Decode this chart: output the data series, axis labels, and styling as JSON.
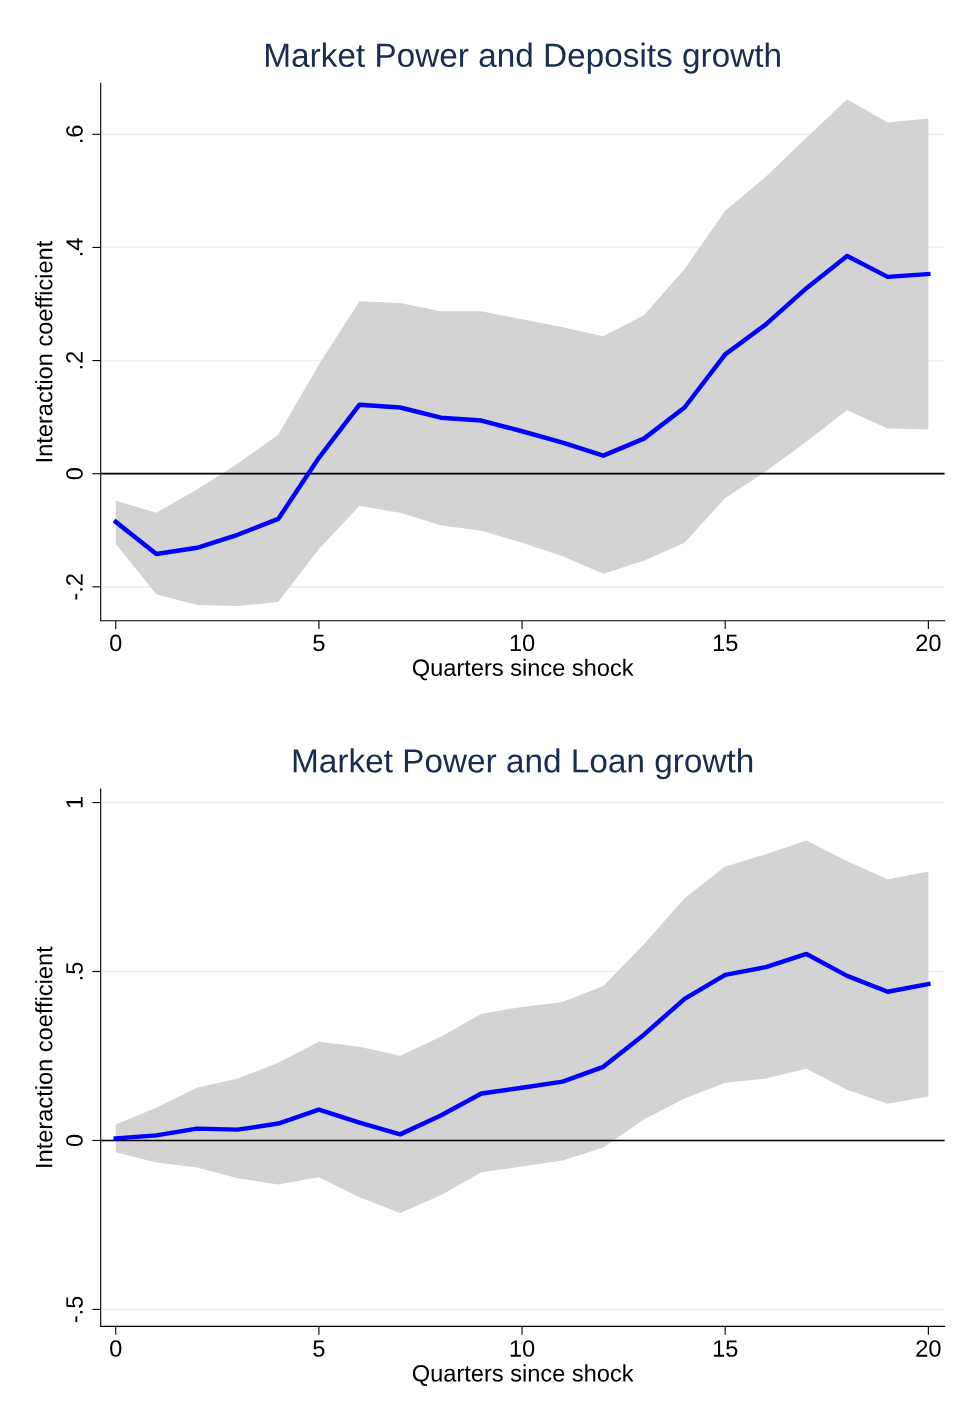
{
  "chart_data": [
    {
      "type": "line",
      "title": "Market Power and Deposits growth",
      "xlabel": "Quarters since shock",
      "ylabel": "Interaction coefficient",
      "x": [
        0,
        1,
        2,
        3,
        4,
        5,
        6,
        7,
        8,
        9,
        10,
        11,
        12,
        13,
        14,
        15,
        16,
        17,
        18,
        19,
        20
      ],
      "series": [
        {
          "color": "#0000ff",
          "values": [
            -0.085,
            -0.142,
            -0.131,
            -0.108,
            -0.08,
            0.028,
            0.122,
            0.117,
            0.099,
            0.094,
            0.075,
            0.055,
            0.032,
            0.062,
            0.117,
            0.211,
            0.264,
            0.328,
            0.385,
            0.348,
            0.353
          ],
          "upper": [
            -0.048,
            -0.069,
            -0.028,
            0.018,
            0.069,
            0.193,
            0.305,
            0.302,
            0.287,
            0.287,
            0.273,
            0.259,
            0.243,
            0.28,
            0.362,
            0.465,
            0.525,
            0.594,
            0.662,
            0.621,
            0.628
          ],
          "lower": [
            -0.124,
            -0.213,
            -0.232,
            -0.234,
            -0.227,
            -0.133,
            -0.057,
            -0.069,
            -0.091,
            -0.101,
            -0.122,
            -0.146,
            -0.177,
            -0.154,
            -0.122,
            -0.043,
            0.004,
            0.057,
            0.112,
            0.08,
            0.078
          ]
        }
      ],
      "xlim": [
        -0.37,
        20.4
      ],
      "xticks": [
        0,
        5,
        10,
        15,
        20
      ],
      "ylim": [
        -0.26,
        0.69
      ],
      "yticks": [
        {
          "value": -0.2,
          "label": "-.2"
        },
        0,
        {
          "value": 0.2,
          "label": ".2"
        },
        {
          "value": 0.4,
          "label": ".4"
        },
        {
          "value": 0.6,
          "label": ".6"
        }
      ],
      "ref_lines": [
        {
          "axis": "y",
          "value": 0,
          "color": "#000000"
        }
      ],
      "grid": "y",
      "legend": false,
      "marker": "none",
      "line_style": "solid"
    },
    {
      "type": "line",
      "title": "Market Power and Loan growth",
      "xlabel": "Quarters since shock",
      "ylabel": "Interaction coefficient",
      "x": [
        0,
        1,
        2,
        3,
        4,
        5,
        6,
        7,
        8,
        9,
        10,
        11,
        12,
        13,
        14,
        15,
        16,
        17,
        18,
        19,
        20
      ],
      "series": [
        {
          "color": "#0000ff",
          "values": [
            0.006,
            0.015,
            0.035,
            0.032,
            0.05,
            0.091,
            0.053,
            0.018,
            0.074,
            0.139,
            0.156,
            0.174,
            0.218,
            0.313,
            0.419,
            0.49,
            0.513,
            0.552,
            0.487,
            0.44,
            0.463
          ],
          "upper": [
            0.047,
            0.097,
            0.156,
            0.183,
            0.23,
            0.292,
            0.277,
            0.251,
            0.307,
            0.375,
            0.395,
            0.41,
            0.457,
            0.581,
            0.717,
            0.811,
            0.847,
            0.888,
            0.826,
            0.773,
            0.796
          ],
          "lower": [
            -0.035,
            -0.065,
            -0.08,
            -0.112,
            -0.13,
            -0.109,
            -0.168,
            -0.215,
            -0.162,
            -0.094,
            -0.077,
            -0.059,
            -0.021,
            0.062,
            0.124,
            0.171,
            0.183,
            0.212,
            0.15,
            0.109,
            0.13
          ]
        }
      ],
      "xlim": [
        -0.37,
        20.4
      ],
      "xticks": [
        0,
        5,
        10,
        15,
        20
      ],
      "ylim": [
        -0.55,
        1.04
      ],
      "yticks": [
        {
          "value": -0.5,
          "label": "-.5"
        },
        0,
        {
          "value": 0.5,
          "label": ".5"
        },
        1
      ],
      "ref_lines": [
        {
          "axis": "y",
          "value": 0,
          "color": "#000000"
        }
      ],
      "grid": "y",
      "legend": false,
      "marker": "none",
      "line_style": "solid"
    }
  ]
}
